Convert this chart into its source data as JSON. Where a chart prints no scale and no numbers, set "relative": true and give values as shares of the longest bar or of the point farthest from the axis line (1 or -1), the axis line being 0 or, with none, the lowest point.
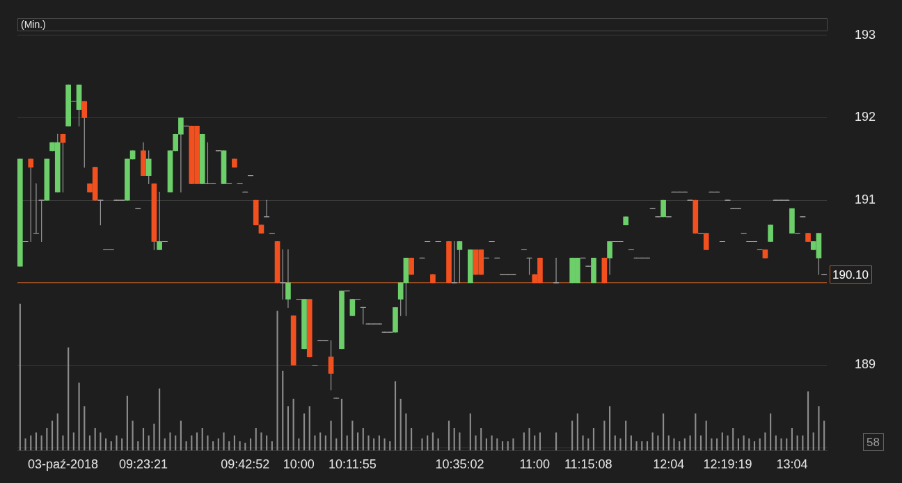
{
  "chart_data": [
    {
      "type": "candlestick",
      "title": "(Min.)",
      "grid": "y",
      "categories": [
        null,
        null,
        null,
        null,
        null,
        null,
        null,
        null,
        "03-paź-2018",
        null,
        null,
        null,
        null,
        null,
        null,
        null,
        null,
        null,
        null,
        null,
        null,
        null,
        null,
        "09:23:21",
        null,
        null,
        null,
        null,
        null,
        null,
        null,
        null,
        null,
        null,
        null,
        null,
        null,
        null,
        null,
        null,
        null,
        null,
        "09:42:52",
        null,
        null,
        null,
        null,
        null,
        null,
        null,
        null,
        null,
        "10:00",
        null,
        null,
        null,
        null,
        null,
        null,
        null,
        null,
        null,
        "10:11:55",
        null,
        null,
        null,
        null,
        null,
        null,
        null,
        null,
        null,
        null,
        null,
        null,
        null,
        null,
        null,
        null,
        null,
        null,
        null,
        "10:35:02",
        null,
        null,
        null,
        null,
        null,
        null,
        null,
        null,
        null,
        null,
        null,
        null,
        null,
        "11:00",
        null,
        null,
        null,
        null,
        null,
        null,
        null,
        null,
        null,
        "11:15:08",
        null,
        null,
        null,
        null,
        null,
        null,
        null,
        null,
        null,
        null,
        null,
        null,
        null,
        null,
        "12:04",
        null,
        null,
        null,
        null,
        null,
        null,
        null,
        null,
        null,
        null,
        "12:19:19",
        null,
        null,
        null,
        null,
        null,
        null,
        null,
        null,
        null,
        null,
        null,
        "13:04",
        null,
        null,
        null,
        null,
        null,
        null
      ],
      "ohlc": [
        [
          190.2,
          191.5,
          190.2,
          191.5
        ],
        [
          190.5,
          190.5,
          190.5,
          190.5
        ],
        [
          191.5,
          191.5,
          190.5,
          191.4
        ],
        [
          190.6,
          191.2,
          190.6,
          190.6
        ],
        [
          191.0,
          191.0,
          190.5,
          191.0
        ],
        [
          191.0,
          191.5,
          191.0,
          191.5
        ],
        [
          191.6,
          191.7,
          191.6,
          191.7
        ],
        [
          191.1,
          191.8,
          191.1,
          191.7
        ],
        [
          191.8,
          191.8,
          191.1,
          191.7
        ],
        [
          191.9,
          192.4,
          191.9,
          192.4
        ],
        [
          192.2,
          192.2,
          192.2,
          192.2
        ],
        [
          192.1,
          192.4,
          191.9,
          192.4
        ],
        [
          192.2,
          192.2,
          191.4,
          192.0
        ],
        [
          191.2,
          191.2,
          191.1,
          191.1
        ],
        [
          191.4,
          191.4,
          191.0,
          191.0
        ],
        [
          191.0,
          191.0,
          190.7,
          191.0
        ],
        [
          190.4,
          190.4,
          190.4,
          190.4
        ],
        [
          190.4,
          190.4,
          190.4,
          190.4
        ],
        [
          191.0,
          191.0,
          191.0,
          191.0
        ],
        [
          191.0,
          191.0,
          191.0,
          191.0
        ],
        [
          191.0,
          191.5,
          191.0,
          191.5
        ],
        [
          191.5,
          191.6,
          191.5,
          191.6
        ],
        [
          190.9,
          190.9,
          190.9,
          190.9
        ],
        [
          191.6,
          191.7,
          191.3,
          191.3
        ],
        [
          191.3,
          191.6,
          191.2,
          191.5
        ],
        [
          191.2,
          191.2,
          190.4,
          190.5
        ],
        [
          190.4,
          191.1,
          190.4,
          190.5
        ],
        [
          190.5,
          190.5,
          190.5,
          190.5
        ],
        [
          191.1,
          191.6,
          191.1,
          191.6
        ],
        [
          191.6,
          191.8,
          191.6,
          191.8
        ],
        [
          191.8,
          192.0,
          191.1,
          192.0
        ],
        [
          191.9,
          191.9,
          191.9,
          191.9
        ],
        [
          191.9,
          191.9,
          191.2,
          191.2
        ],
        [
          191.9,
          191.9,
          191.2,
          191.2
        ],
        [
          191.2,
          191.8,
          191.2,
          191.8
        ],
        [
          191.2,
          191.7,
          191.2,
          191.2
        ],
        [
          191.2,
          191.2,
          191.2,
          191.2
        ],
        [
          191.6,
          191.6,
          191.6,
          191.6
        ],
        [
          191.2,
          191.6,
          191.2,
          191.6
        ],
        [
          191.2,
          191.2,
          191.2,
          191.2
        ],
        [
          191.5,
          191.5,
          191.4,
          191.4
        ],
        [
          191.2,
          191.2,
          191.2,
          191.2
        ],
        [
          191.1,
          191.1,
          191.1,
          191.1
        ],
        [
          191.3,
          191.3,
          191.3,
          191.3
        ],
        [
          191.0,
          191.0,
          190.7,
          190.7
        ],
        [
          190.7,
          190.7,
          190.6,
          190.6
        ],
        [
          190.8,
          191.0,
          190.8,
          190.8
        ],
        [
          190.6,
          190.6,
          190.6,
          190.6
        ],
        [
          190.5,
          190.5,
          190.0,
          190.0
        ],
        [
          190.0,
          190.4,
          189.8,
          190.0
        ],
        [
          189.8,
          190.4,
          189.7,
          190.0
        ],
        [
          189.6,
          189.6,
          189.0,
          189.0
        ],
        [
          189.8,
          189.8,
          189.8,
          189.8
        ],
        [
          189.2,
          189.8,
          189.2,
          189.8
        ],
        [
          189.8,
          189.8,
          189.1,
          189.1
        ],
        [
          189.0,
          189.0,
          189.0,
          189.0
        ],
        [
          189.3,
          189.3,
          189.3,
          189.3
        ],
        [
          189.3,
          189.3,
          189.3,
          189.3
        ],
        [
          189.1,
          189.3,
          188.7,
          188.9
        ],
        [
          188.6,
          188.6,
          188.6,
          188.6
        ],
        [
          189.2,
          189.9,
          189.2,
          189.9
        ],
        [
          189.9,
          189.9,
          189.9,
          189.9
        ],
        [
          189.6,
          189.8,
          189.6,
          189.8
        ],
        [
          189.8,
          189.8,
          189.8,
          189.8
        ],
        [
          189.7,
          189.7,
          189.5,
          189.7
        ],
        [
          189.5,
          189.5,
          189.5,
          189.5
        ],
        [
          189.5,
          189.5,
          189.5,
          189.5
        ],
        [
          189.5,
          189.5,
          189.5,
          189.5
        ],
        [
          189.4,
          189.4,
          189.4,
          189.4
        ],
        [
          189.4,
          189.4,
          189.4,
          189.4
        ],
        [
          189.4,
          189.7,
          189.4,
          189.7
        ],
        [
          189.8,
          190.0,
          189.6,
          190.0
        ],
        [
          190.0,
          190.3,
          189.6,
          190.3
        ],
        [
          190.3,
          190.3,
          190.1,
          190.1
        ],
        null,
        [
          190.3,
          190.3,
          190.3,
          190.3
        ],
        [
          190.5,
          190.5,
          190.5,
          190.5
        ],
        [
          190.1,
          190.1,
          190.0,
          190.0
        ],
        [
          190.5,
          190.5,
          190.5,
          190.5
        ],
        null,
        [
          190.5,
          190.5,
          190.0,
          190.0
        ],
        [
          190.0,
          190.5,
          190.0,
          190.0
        ],
        [
          190.4,
          190.5,
          190.0,
          190.5
        ],
        null,
        [
          190.0,
          190.4,
          190.0,
          190.4
        ],
        [
          190.4,
          190.4,
          190.1,
          190.1
        ],
        [
          190.4,
          190.4,
          190.1,
          190.1
        ],
        [
          190.3,
          190.3,
          190.3,
          190.3
        ],
        [
          190.5,
          190.5,
          190.5,
          190.5
        ],
        [
          190.3,
          190.3,
          190.3,
          190.3
        ],
        [
          190.1,
          190.1,
          190.1,
          190.1
        ],
        [
          190.1,
          190.1,
          190.1,
          190.1
        ],
        [
          190.1,
          190.1,
          190.1,
          190.1
        ],
        null,
        [
          190.4,
          190.4,
          190.4,
          190.4
        ],
        [
          190.3,
          190.3,
          190.1,
          190.3
        ],
        [
          190.1,
          190.1,
          190.0,
          190.0
        ],
        [
          190.3,
          190.3,
          190.0,
          190.0
        ],
        null,
        null,
        [
          190.0,
          190.3,
          190.0,
          190.0
        ],
        null,
        null,
        [
          190.0,
          190.3,
          190.0,
          190.3
        ],
        [
          190.0,
          190.3,
          190.0,
          190.3
        ],
        [
          190.3,
          190.3,
          190.3,
          190.3
        ],
        [
          190.2,
          190.2,
          190.2,
          190.2
        ],
        [
          190.0,
          190.3,
          190.0,
          190.3
        ],
        null,
        [
          190.3,
          190.3,
          190.0,
          190.0
        ],
        [
          190.3,
          190.5,
          190.1,
          190.5
        ],
        [
          190.5,
          190.5,
          190.5,
          190.5
        ],
        [
          190.5,
          190.5,
          190.5,
          190.5
        ],
        [
          190.7,
          190.8,
          190.7,
          190.8
        ],
        [
          190.4,
          190.4,
          190.4,
          190.4
        ],
        [
          190.3,
          190.3,
          190.3,
          190.3
        ],
        [
          190.3,
          190.3,
          190.3,
          190.3
        ],
        [
          190.3,
          190.3,
          190.3,
          190.3
        ],
        [
          190.9,
          190.9,
          190.9,
          190.9
        ],
        [
          190.8,
          190.8,
          190.8,
          190.8
        ],
        [
          190.8,
          191.0,
          190.8,
          191.0
        ],
        [
          190.8,
          190.8,
          190.8,
          190.8
        ],
        [
          191.1,
          191.1,
          191.1,
          191.1
        ],
        [
          191.1,
          191.1,
          191.1,
          191.1
        ],
        [
          191.1,
          191.1,
          191.1,
          191.1
        ],
        [
          191.0,
          191.0,
          191.0,
          191.0
        ],
        [
          191.0,
          191.0,
          190.6,
          190.6
        ],
        [
          190.6,
          190.6,
          190.6,
          190.6
        ],
        [
          190.6,
          190.6,
          190.4,
          190.4
        ],
        [
          191.1,
          191.1,
          191.1,
          191.1
        ],
        [
          191.1,
          191.1,
          191.1,
          191.1
        ],
        [
          190.5,
          190.5,
          190.5,
          190.5
        ],
        [
          191.0,
          191.0,
          191.0,
          191.0
        ],
        [
          190.9,
          190.9,
          190.9,
          190.9
        ],
        [
          190.9,
          190.9,
          190.9,
          190.9
        ],
        [
          190.6,
          190.6,
          190.6,
          190.6
        ],
        [
          190.5,
          190.5,
          190.5,
          190.5
        ],
        [
          190.5,
          190.5,
          190.5,
          190.5
        ],
        [
          190.4,
          190.4,
          190.4,
          190.4
        ],
        [
          190.4,
          190.4,
          190.3,
          190.3
        ],
        [
          190.5,
          190.7,
          190.5,
          190.7
        ],
        [
          191.0,
          191.0,
          191.0,
          191.0
        ],
        [
          191.0,
          191.0,
          191.0,
          191.0
        ],
        [
          191.0,
          191.0,
          191.0,
          191.0
        ],
        [
          190.6,
          190.9,
          190.6,
          190.9
        ],
        [
          190.6,
          190.6,
          190.6,
          190.6
        ],
        [
          190.8,
          190.8,
          190.8,
          190.8
        ],
        [
          190.6,
          190.6,
          190.5,
          190.5
        ],
        [
          190.4,
          190.5,
          190.4,
          190.5
        ],
        [
          190.3,
          190.6,
          190.1,
          190.6
        ],
        [
          190.1,
          190.1,
          190.1,
          190.1
        ]
      ],
      "colors": [
        "#6ccf6a",
        "#9a9a9a",
        "#f2511f",
        "#9a9a9a",
        "#9a9a9a",
        "#6ccf6a",
        "#6ccf6a",
        "#6ccf6a",
        "#f2511f",
        "#6ccf6a",
        "#9a9a9a",
        "#6ccf6a",
        "#f2511f",
        "#f2511f",
        "#f2511f",
        "#9a9a9a",
        "#9a9a9a",
        "#9a9a9a",
        "#9a9a9a",
        "#9a9a9a",
        "#6ccf6a",
        "#6ccf6a",
        "#9a9a9a",
        "#f2511f",
        "#6ccf6a",
        "#f2511f",
        "#6ccf6a",
        "#9a9a9a",
        "#6ccf6a",
        "#6ccf6a",
        "#6ccf6a",
        "#9a9a9a",
        "#f2511f",
        "#f2511f",
        "#6ccf6a",
        "#9a9a9a",
        "#9a9a9a",
        "#9a9a9a",
        "#6ccf6a",
        "#9a9a9a",
        "#f2511f",
        "#9a9a9a",
        "#9a9a9a",
        "#9a9a9a",
        "#f2511f",
        "#f2511f",
        "#9a9a9a",
        "#9a9a9a",
        "#f2511f",
        "#9a9a9a",
        "#6ccf6a",
        "#f2511f",
        "#9a9a9a",
        "#6ccf6a",
        "#f2511f",
        "#9a9a9a",
        "#9a9a9a",
        "#9a9a9a",
        "#f2511f",
        "#9a9a9a",
        "#6ccf6a",
        "#9a9a9a",
        "#6ccf6a",
        "#9a9a9a",
        "#9a9a9a",
        "#9a9a9a",
        "#9a9a9a",
        "#9a9a9a",
        "#9a9a9a",
        "#9a9a9a",
        "#6ccf6a",
        "#6ccf6a",
        "#6ccf6a",
        "#f2511f",
        null,
        "#9a9a9a",
        "#9a9a9a",
        "#f2511f",
        "#9a9a9a",
        null,
        "#f2511f",
        "#9a9a9a",
        "#6ccf6a",
        null,
        "#6ccf6a",
        "#f2511f",
        "#f2511f",
        "#9a9a9a",
        "#9a9a9a",
        "#9a9a9a",
        "#9a9a9a",
        "#9a9a9a",
        "#9a9a9a",
        null,
        "#9a9a9a",
        "#9a9a9a",
        "#f2511f",
        "#f2511f",
        null,
        null,
        "#9a9a9a",
        null,
        null,
        "#6ccf6a",
        "#6ccf6a",
        "#9a9a9a",
        "#9a9a9a",
        "#6ccf6a",
        null,
        "#f2511f",
        "#6ccf6a",
        "#9a9a9a",
        "#9a9a9a",
        "#6ccf6a",
        "#9a9a9a",
        "#9a9a9a",
        "#9a9a9a",
        "#9a9a9a",
        "#9a9a9a",
        "#9a9a9a",
        "#6ccf6a",
        "#9a9a9a",
        "#9a9a9a",
        "#9a9a9a",
        "#9a9a9a",
        "#9a9a9a",
        "#f2511f",
        "#9a9a9a",
        "#f2511f",
        "#9a9a9a",
        "#9a9a9a",
        "#9a9a9a",
        "#9a9a9a",
        "#9a9a9a",
        "#9a9a9a",
        "#9a9a9a",
        "#9a9a9a",
        "#9a9a9a",
        "#9a9a9a",
        "#f2511f",
        "#6ccf6a",
        "#9a9a9a",
        "#9a9a9a",
        "#9a9a9a",
        "#6ccf6a",
        "#9a9a9a",
        "#9a9a9a",
        "#f2511f",
        "#6ccf6a",
        "#6ccf6a",
        "#9a9a9a"
      ],
      "ylim": [
        188,
        193
      ],
      "yticks": [
        {
          "value": 189,
          "label": "189"
        },
        {
          "value": 190,
          "label": null
        },
        {
          "value": 191,
          "label": "191"
        },
        {
          "value": 192,
          "label": "192"
        },
        {
          "value": 193,
          "label": "193"
        }
      ],
      "ref_lines": [
        {
          "axis": "y",
          "value": 190,
          "label": null,
          "color": "#c0561c"
        }
      ],
      "annotations": [
        "190.10"
      ]
    },
    {
      "type": "bar",
      "relative": true,
      "color": "#8c8c8c",
      "annotations": [
        "58"
      ],
      "categories": [
        null,
        null,
        null,
        null,
        null,
        null,
        null,
        null,
        null,
        null,
        null,
        null,
        null,
        null,
        null,
        null,
        null,
        null,
        null,
        null,
        null,
        null,
        null,
        null,
        null,
        null,
        null,
        null,
        null,
        null,
        null,
        null,
        null,
        null,
        null,
        null,
        null,
        null,
        null,
        null,
        null,
        null,
        null,
        null,
        null,
        null,
        null,
        null,
        null,
        null,
        null,
        null,
        null,
        null,
        null,
        null,
        null,
        null,
        null,
        null,
        null,
        null,
        null,
        null,
        null,
        null,
        null,
        null,
        null,
        null,
        null,
        null,
        null,
        null,
        null,
        null,
        null,
        null,
        null,
        null,
        null,
        null,
        null,
        null,
        null,
        null,
        null,
        null,
        null,
        null,
        null,
        null,
        null,
        null,
        null,
        null,
        null,
        null,
        null,
        null,
        null,
        null,
        null,
        null,
        null,
        null,
        null,
        null,
        null,
        null,
        null,
        null,
        null,
        null,
        null,
        null,
        null,
        null,
        null,
        null,
        null,
        null,
        null,
        null,
        null,
        null,
        null,
        null,
        null,
        null,
        null,
        null,
        null,
        null,
        null,
        null,
        null,
        null,
        null,
        null,
        null,
        null,
        null,
        null,
        null,
        null,
        null,
        null,
        null,
        null,
        null
      ],
      "values": [
        1.0,
        0.08,
        0.1,
        0.12,
        0.1,
        0.15,
        0.2,
        0.25,
        0.1,
        0.7,
        0.12,
        0.46,
        0.3,
        0.1,
        0.15,
        0.12,
        0.08,
        0.06,
        0.1,
        0.08,
        0.37,
        0.2,
        0.06,
        0.15,
        0.1,
        0.18,
        0.42,
        0.08,
        0.12,
        0.1,
        0.2,
        0.06,
        0.1,
        0.12,
        0.15,
        0.1,
        0.06,
        0.08,
        0.12,
        0.06,
        0.1,
        0.06,
        0.05,
        0.08,
        0.15,
        0.12,
        0.1,
        0.06,
        0.95,
        0.54,
        0.3,
        0.35,
        0.08,
        0.25,
        0.3,
        0.1,
        0.12,
        0.1,
        0.2,
        0.08,
        0.35,
        0.1,
        0.2,
        0.12,
        0.15,
        0.1,
        0.08,
        0.1,
        0.08,
        0.06,
        0.47,
        0.35,
        0.25,
        0.15,
        null,
        0.08,
        0.1,
        0.12,
        0.08,
        null,
        0.2,
        0.15,
        0.12,
        null,
        0.25,
        0.1,
        0.15,
        0.08,
        0.1,
        0.08,
        0.06,
        0.06,
        0.08,
        null,
        0.12,
        0.15,
        0.1,
        0.12,
        null,
        null,
        0.12,
        null,
        null,
        0.2,
        0.25,
        0.1,
        0.08,
        0.15,
        null,
        0.2,
        0.3,
        0.1,
        0.08,
        0.2,
        0.1,
        0.06,
        0.06,
        0.06,
        0.12,
        0.1,
        0.25,
        0.1,
        0.08,
        0.06,
        0.08,
        0.1,
        0.25,
        0.1,
        0.2,
        0.08,
        0.08,
        0.12,
        0.1,
        0.15,
        0.08,
        0.1,
        0.08,
        0.06,
        0.08,
        0.12,
        0.25,
        0.1,
        0.08,
        0.08,
        0.15,
        0.1,
        0.1,
        0.4,
        0.12,
        0.3,
        0.2
      ],
      "grid": false
    }
  ]
}
